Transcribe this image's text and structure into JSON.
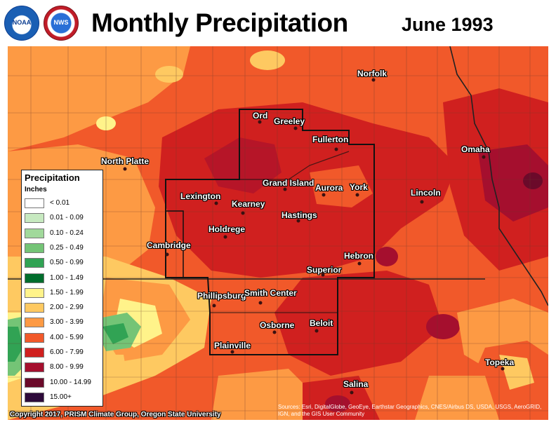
{
  "header": {
    "title": "Monthly Precipitation",
    "date": "June 1993",
    "logo_noaa_text": "NOAA",
    "logo_nws_text": "NWS"
  },
  "legend": {
    "title": "Precipitation",
    "units": "Inches",
    "items": [
      {
        "label": "< 0.01",
        "color": "#ffffff"
      },
      {
        "label": "0.01 - 0.09",
        "color": "#c7e9c0"
      },
      {
        "label": "0.10 - 0.24",
        "color": "#a1d99b"
      },
      {
        "label": "0.25 - 0.49",
        "color": "#74c476"
      },
      {
        "label": "0.50 - 0.99",
        "color": "#31a354"
      },
      {
        "label": "1.00 - 1.49",
        "color": "#006d2c"
      },
      {
        "label": "1.50 - 1.99",
        "color": "#fff38a"
      },
      {
        "label": "2.00 - 2.99",
        "color": "#fec961"
      },
      {
        "label": "3.00 - 3.99",
        "color": "#fd9a44"
      },
      {
        "label": "4.00 - 5.99",
        "color": "#f1592a"
      },
      {
        "label": "6.00 - 7.99",
        "color": "#d0201f"
      },
      {
        "label": "8.00 - 9.99",
        "color": "#a50f2e"
      },
      {
        "label": "10.00 - 14.99",
        "color": "#6b0a2a"
      },
      {
        "label": "15.00+",
        "color": "#2d0a3a"
      }
    ]
  },
  "cities": {
    "norfolk": "Norfolk",
    "ord": "Ord",
    "greeley": "Greeley",
    "fullerton": "Fullerton",
    "north_platte": "North Platte",
    "omaha": "Omaha",
    "grand_island": "Grand Island",
    "aurora": "Aurora",
    "york": "York",
    "lincoln": "Lincoln",
    "lexington": "Lexington",
    "kearney": "Kearney",
    "hastings": "Hastings",
    "holdrege": "Holdrege",
    "cambridge": "Cambridge",
    "hebron": "Hebron",
    "superior": "Superior",
    "phillipsburg": "Phillipsburg",
    "smith_center": "Smith Center",
    "osborne": "Osborne",
    "beloit": "Beloit",
    "plainville": "Plainville",
    "topeka": "Topeka",
    "salina": "Salina"
  },
  "footer": {
    "copyright": "Copyright 2017, PRISM Climate Group, Oregon State University",
    "sources": "Sources: Esri, DigitalGlobe, GeoEye, Earthstar Geographics, CNES/Airbus DS, USDA, USGS, AeroGRID, IGN, and the GIS User Community"
  }
}
